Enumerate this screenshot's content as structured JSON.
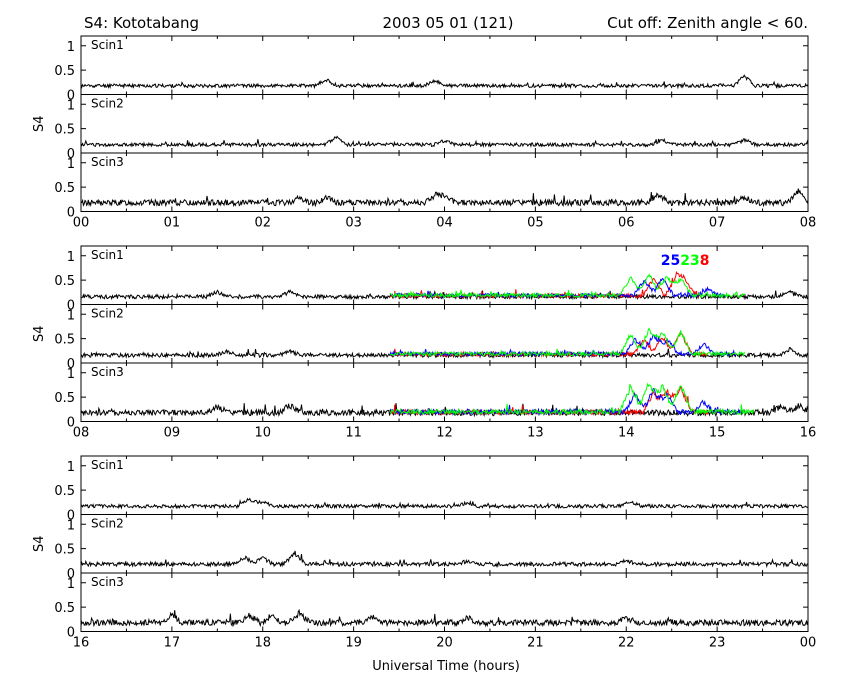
{
  "header": {
    "station": "S4: Kototabang",
    "date": "2003 05 01 (121)",
    "cutoff": "Cut off: Zenith angle < 60."
  },
  "colors": {
    "black": "#000000",
    "blue": "#0000ff",
    "green": "#00ff00",
    "red": "#ff0000"
  },
  "chart_data": {
    "type": "line",
    "xlabel": "Universal Time (hours)",
    "ylabel": "S4",
    "ylim": [
      0,
      1.2
    ],
    "ytick_labels": [
      "0",
      "0.5",
      "1"
    ],
    "grid": false,
    "panel_labels": [
      "Scin1",
      "Scin2",
      "Scin3"
    ],
    "satellite_labels": [
      {
        "text": "25",
        "color": "#0000ff"
      },
      {
        "text": "23",
        "color": "#00ff00"
      },
      {
        "text": "8",
        "color": "#ff0000"
      }
    ],
    "groups": [
      {
        "xrange": [
          0,
          8
        ],
        "xtick_labels": [
          "00",
          "01",
          "02",
          "03",
          "04",
          "05",
          "06",
          "07",
          "08"
        ],
        "panels": [
          {
            "name": "Scin1",
            "series": [
              {
                "name": "",
                "color": "#000000",
                "base": 0.18,
                "noise": 0.035,
                "seed": 11,
                "peaks": [
                  [
                    2.7,
                    0.12
                  ],
                  [
                    3.9,
                    0.1
                  ],
                  [
                    7.3,
                    0.2
                  ]
                ]
              }
            ]
          },
          {
            "name": "Scin2",
            "series": [
              {
                "name": "",
                "color": "#000000",
                "base": 0.17,
                "noise": 0.035,
                "seed": 12,
                "peaks": [
                  [
                    2.8,
                    0.15
                  ],
                  [
                    4.0,
                    0.08
                  ],
                  [
                    6.4,
                    0.1
                  ],
                  [
                    7.3,
                    0.1
                  ]
                ]
              }
            ]
          },
          {
            "name": "Scin3",
            "series": [
              {
                "name": "",
                "color": "#000000",
                "base": 0.18,
                "noise": 0.06,
                "seed": 13,
                "peaks": [
                  [
                    2.4,
                    0.1
                  ],
                  [
                    2.7,
                    0.1
                  ],
                  [
                    3.9,
                    0.15
                  ],
                  [
                    4.0,
                    0.12
                  ],
                  [
                    6.35,
                    0.18
                  ],
                  [
                    7.3,
                    0.12
                  ],
                  [
                    7.9,
                    0.25
                  ]
                ]
              }
            ]
          }
        ]
      },
      {
        "xrange": [
          8,
          16
        ],
        "xtick_labels": [
          "08",
          "09",
          "10",
          "11",
          "12",
          "13",
          "14",
          "15",
          "16"
        ],
        "panels": [
          {
            "name": "Scin1",
            "series": [
              {
                "name": "",
                "color": "#000000",
                "base": 0.16,
                "noise": 0.04,
                "seed": 21,
                "peaks": [
                  [
                    9.5,
                    0.1
                  ],
                  [
                    10.3,
                    0.1
                  ],
                  [
                    15.8,
                    0.1
                  ]
                ]
              },
              {
                "name": "",
                "color": "#ff0000",
                "base": 0.18,
                "noise": 0.04,
                "seed": 22,
                "start": 11.4,
                "end": 14.8,
                "peaks": [
                  [
                    14.3,
                    0.35
                  ],
                  [
                    14.55,
                    0.4
                  ],
                  [
                    14.65,
                    0.3
                  ]
                ]
              },
              {
                "name": "",
                "color": "#0000ff",
                "base": 0.19,
                "noise": 0.04,
                "seed": 23,
                "start": 11.4,
                "end": 15.1,
                "peaks": [
                  [
                    14.2,
                    0.3
                  ],
                  [
                    14.4,
                    0.35
                  ],
                  [
                    14.9,
                    0.12
                  ]
                ]
              },
              {
                "name": "",
                "color": "#00ff00",
                "base": 0.19,
                "noise": 0.04,
                "seed": 24,
                "start": 11.4,
                "end": 15.3,
                "peaks": [
                  [
                    14.05,
                    0.35
                  ],
                  [
                    14.25,
                    0.45
                  ],
                  [
                    14.45,
                    0.4
                  ],
                  [
                    14.6,
                    0.35
                  ]
                ]
              }
            ]
          },
          {
            "name": "Scin2",
            "series": [
              {
                "name": "",
                "color": "#000000",
                "base": 0.16,
                "noise": 0.04,
                "seed": 31,
                "peaks": [
                  [
                    9.6,
                    0.08
                  ],
                  [
                    10.3,
                    0.08
                  ],
                  [
                    15.8,
                    0.12
                  ]
                ]
              },
              {
                "name": "",
                "color": "#ff0000",
                "base": 0.18,
                "noise": 0.04,
                "seed": 32,
                "start": 11.4,
                "end": 14.9,
                "peaks": [
                  [
                    14.2,
                    0.3
                  ],
                  [
                    14.4,
                    0.35
                  ],
                  [
                    14.6,
                    0.45
                  ]
                ]
              },
              {
                "name": "",
                "color": "#0000ff",
                "base": 0.19,
                "noise": 0.04,
                "seed": 33,
                "start": 11.4,
                "end": 15.2,
                "peaks": [
                  [
                    14.1,
                    0.3
                  ],
                  [
                    14.3,
                    0.4
                  ],
                  [
                    14.45,
                    0.3
                  ],
                  [
                    14.85,
                    0.2
                  ]
                ]
              },
              {
                "name": "",
                "color": "#00ff00",
                "base": 0.19,
                "noise": 0.04,
                "seed": 34,
                "start": 11.4,
                "end": 15.3,
                "peaks": [
                  [
                    14.05,
                    0.4
                  ],
                  [
                    14.25,
                    0.5
                  ],
                  [
                    14.4,
                    0.45
                  ],
                  [
                    14.6,
                    0.45
                  ]
                ]
              }
            ]
          },
          {
            "name": "Scin3",
            "series": [
              {
                "name": "",
                "color": "#000000",
                "base": 0.18,
                "noise": 0.06,
                "seed": 41,
                "peaks": [
                  [
                    9.5,
                    0.12
                  ],
                  [
                    10.3,
                    0.15
                  ],
                  [
                    15.7,
                    0.12
                  ],
                  [
                    15.9,
                    0.15
                  ]
                ]
              },
              {
                "name": "",
                "color": "#ff0000",
                "base": 0.19,
                "noise": 0.05,
                "seed": 42,
                "start": 11.4,
                "end": 14.9,
                "peaks": [
                  [
                    14.3,
                    0.4
                  ],
                  [
                    14.45,
                    0.45
                  ],
                  [
                    14.6,
                    0.5
                  ]
                ]
              },
              {
                "name": "",
                "color": "#0000ff",
                "base": 0.2,
                "noise": 0.05,
                "seed": 43,
                "start": 11.4,
                "end": 15.3,
                "peaks": [
                  [
                    14.1,
                    0.35
                  ],
                  [
                    14.3,
                    0.45
                  ],
                  [
                    14.45,
                    0.35
                  ],
                  [
                    14.85,
                    0.2
                  ]
                ]
              },
              {
                "name": "",
                "color": "#00ff00",
                "base": 0.2,
                "noise": 0.05,
                "seed": 44,
                "start": 11.4,
                "end": 15.4,
                "peaks": [
                  [
                    14.05,
                    0.5
                  ],
                  [
                    14.25,
                    0.6
                  ],
                  [
                    14.4,
                    0.55
                  ],
                  [
                    14.6,
                    0.55
                  ]
                ]
              }
            ]
          }
        ]
      },
      {
        "xrange": [
          16,
          24
        ],
        "xtick_labels": [
          "16",
          "17",
          "18",
          "19",
          "20",
          "21",
          "22",
          "23",
          "00"
        ],
        "panels": [
          {
            "name": "Scin1",
            "series": [
              {
                "name": "",
                "color": "#000000",
                "base": 0.17,
                "noise": 0.035,
                "seed": 51,
                "peaks": [
                  [
                    17.85,
                    0.15
                  ],
                  [
                    18.0,
                    0.1
                  ],
                  [
                    20.25,
                    0.08
                  ],
                  [
                    22.05,
                    0.1
                  ]
                ]
              }
            ]
          },
          {
            "name": "Scin2",
            "series": [
              {
                "name": "",
                "color": "#000000",
                "base": 0.18,
                "noise": 0.04,
                "seed": 52,
                "peaks": [
                  [
                    17.8,
                    0.15
                  ],
                  [
                    18.0,
                    0.12
                  ],
                  [
                    18.35,
                    0.22
                  ],
                  [
                    20.25,
                    0.06
                  ],
                  [
                    22.0,
                    0.08
                  ]
                ]
              }
            ]
          },
          {
            "name": "Scin3",
            "series": [
              {
                "name": "",
                "color": "#000000",
                "base": 0.18,
                "noise": 0.06,
                "seed": 53,
                "peaks": [
                  [
                    17.0,
                    0.15
                  ],
                  [
                    17.85,
                    0.15
                  ],
                  [
                    18.1,
                    0.15
                  ],
                  [
                    18.4,
                    0.2
                  ],
                  [
                    19.2,
                    0.12
                  ],
                  [
                    20.25,
                    0.1
                  ],
                  [
                    22.0,
                    0.1
                  ]
                ]
              }
            ]
          }
        ]
      }
    ]
  }
}
